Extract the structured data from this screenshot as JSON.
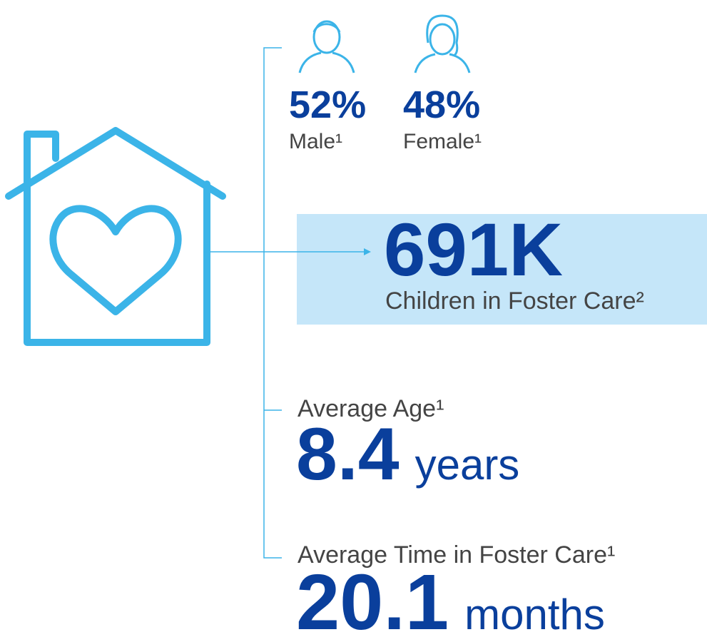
{
  "stats": {
    "male": {
      "value": "52%",
      "label": "Male¹"
    },
    "female": {
      "value": "48%",
      "label": "Female¹"
    },
    "total": {
      "value": "691K",
      "label": "Children in Foster Care²"
    },
    "age": {
      "label": "Average Age¹",
      "value": "8.4",
      "unit": "years"
    },
    "time": {
      "label": "Average Time in Foster Care¹",
      "value": "20.1",
      "unit": "months"
    }
  }
}
